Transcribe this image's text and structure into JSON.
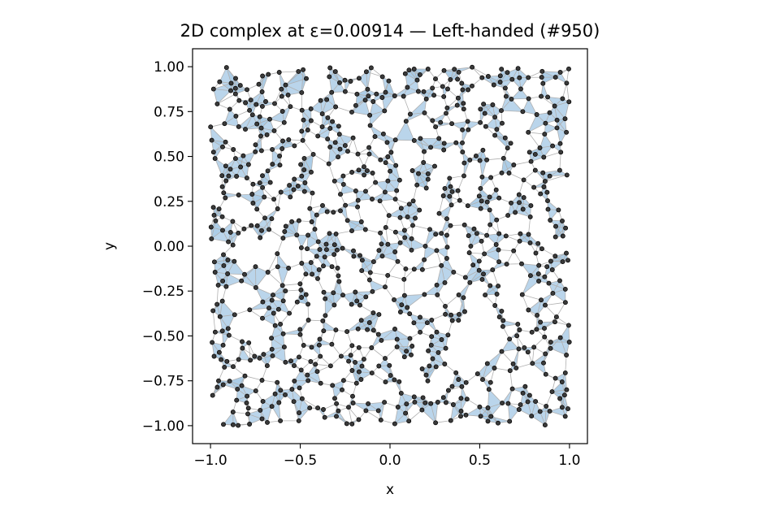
{
  "chart_data": {
    "type": "scatter",
    "title": "2D complex at ε=0.00914 — Left-handed (#950)",
    "xlabel": "x",
    "ylabel": "y",
    "xlim": [
      -1.1,
      1.1
    ],
    "ylim": [
      -1.1,
      1.1
    ],
    "x_ticks": [
      -1.0,
      -0.5,
      0.0,
      0.5,
      1.0
    ],
    "x_tick_labels": [
      "−1.0",
      "−0.5",
      "0.0",
      "0.5",
      "1.0"
    ],
    "y_ticks": [
      1.0,
      0.75,
      0.5,
      0.25,
      0.0,
      -0.25,
      -0.5,
      -0.75,
      -1.0
    ],
    "y_tick_labels": [
      "1.00",
      "0.75",
      "0.50",
      "0.25",
      "0.00",
      "−0.25",
      "−0.50",
      "−0.75",
      "−1.00"
    ],
    "grid": false,
    "point_count": 900,
    "point_domain": [
      -1.0,
      1.0
    ],
    "holes": [
      {
        "center": [
          -0.78,
          -0.02
        ],
        "radius": 0.08
      },
      {
        "center": [
          0.51,
          -0.51
        ],
        "radius": 0.13
      }
    ],
    "colors": {
      "point_fill": "#3a3a3a",
      "point_edge": "#000000",
      "edge": "#b0b0b0",
      "face": "#a9cbe6"
    }
  }
}
